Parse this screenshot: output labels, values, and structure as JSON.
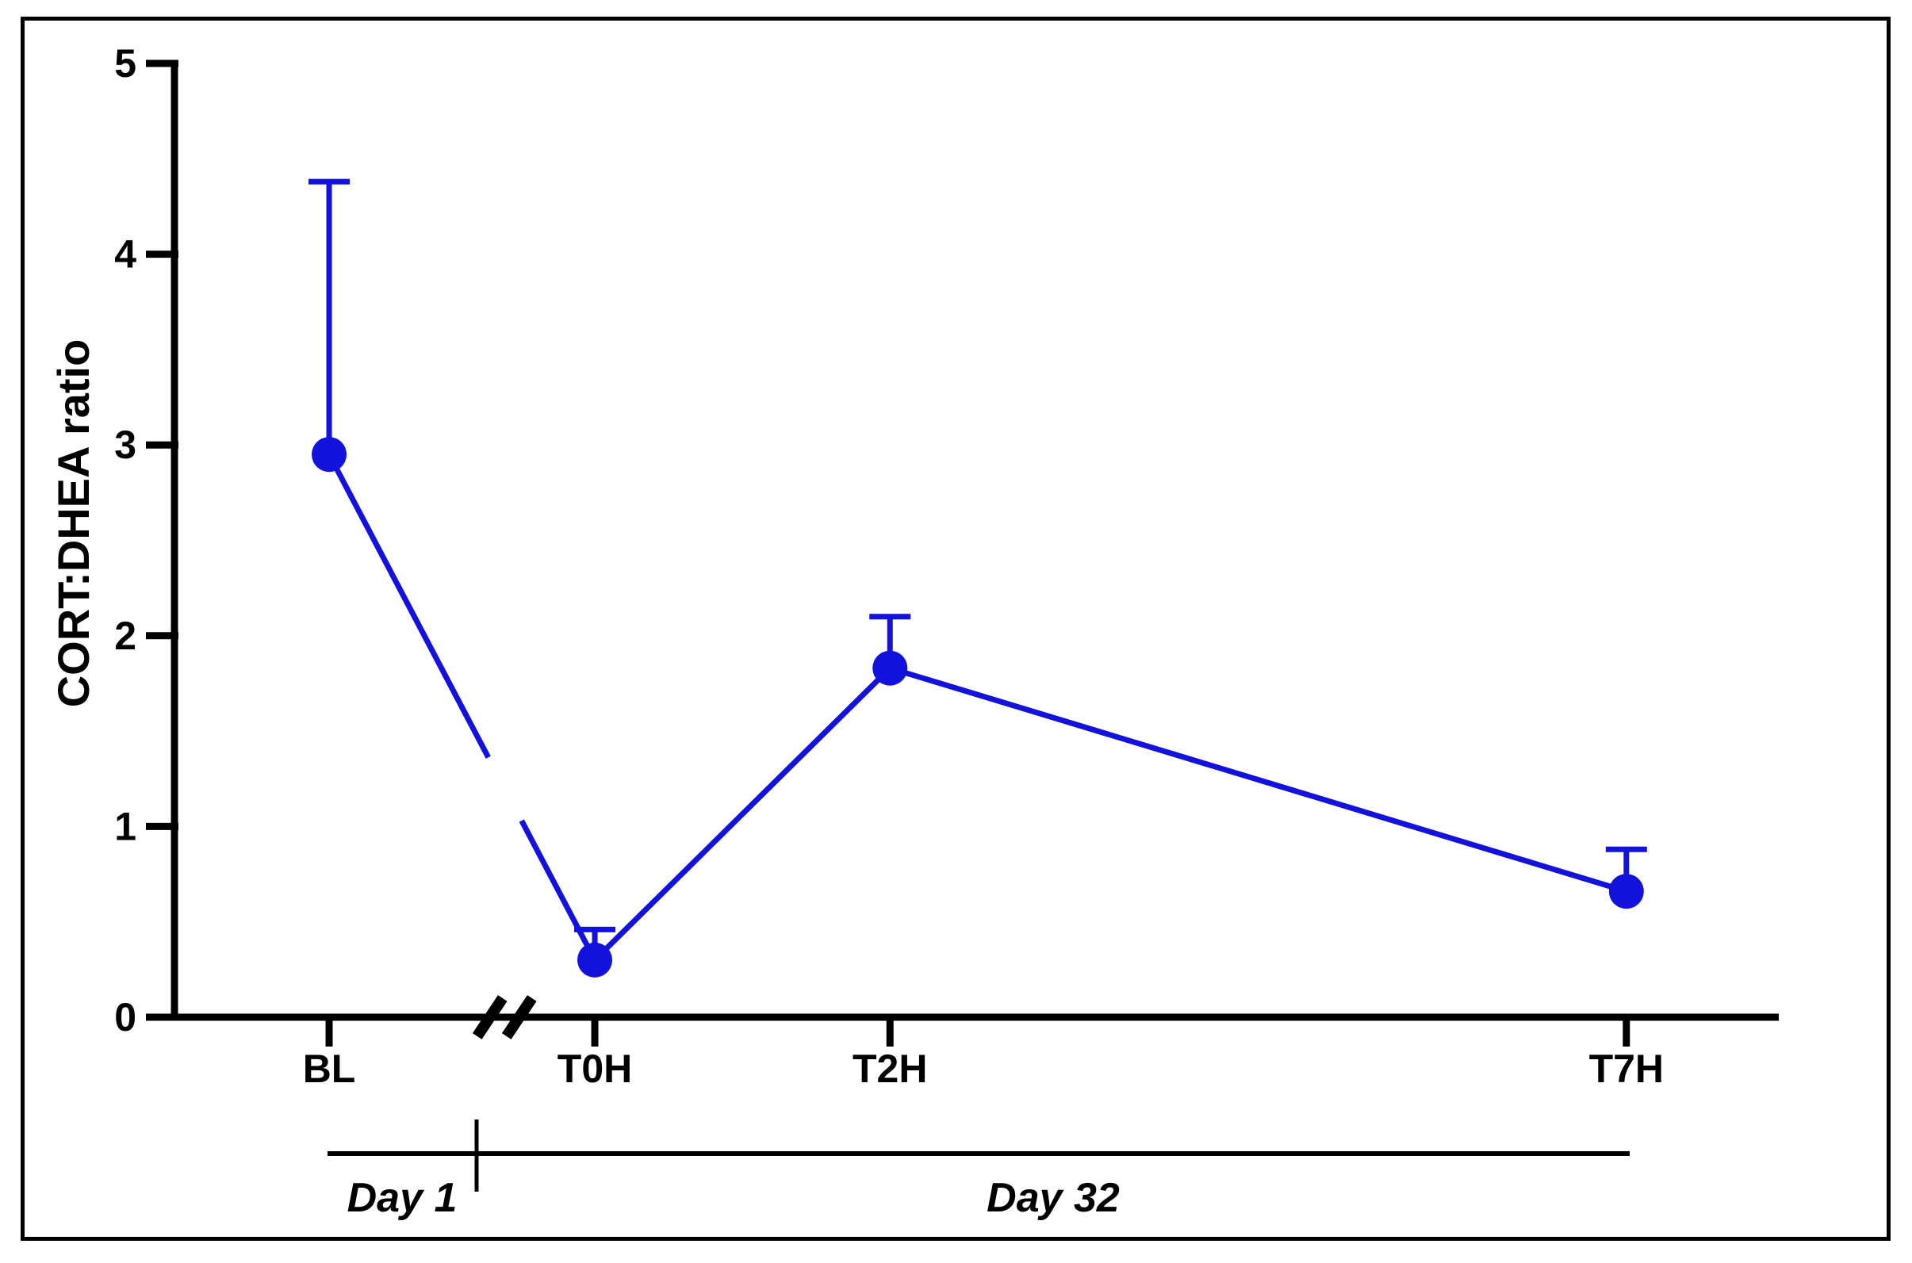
{
  "chart_data": {
    "type": "line",
    "title": "",
    "ylabel": "CORT:DHEA ratio",
    "xlabel": "",
    "categories": [
      "BL",
      "T0H",
      "T2H",
      "T7H"
    ],
    "series": [
      {
        "name": "CORT:DHEA ratio",
        "values": [
          2.95,
          0.3,
          1.83,
          0.66
        ],
        "errors_up": [
          1.43,
          0.16,
          0.27,
          0.22
        ],
        "color": "#1212dc",
        "marker": "circle"
      }
    ],
    "ylim": [
      0,
      5
    ],
    "yticks": [
      0,
      1,
      2,
      3,
      4,
      5
    ],
    "grid": false,
    "legend_position": "none",
    "axis_break": {
      "between": [
        "BL",
        "T0H"
      ],
      "symbol": "//"
    },
    "periods": [
      {
        "label": "Day 1",
        "covers": [
          "BL"
        ]
      },
      {
        "label": "Day 32",
        "covers": [
          "T0H",
          "T2H",
          "T7H"
        ]
      }
    ],
    "colors": {
      "axis": "#000000",
      "frame": "#000000",
      "background": "#ffffff",
      "series_blue": "#1212dc"
    }
  }
}
